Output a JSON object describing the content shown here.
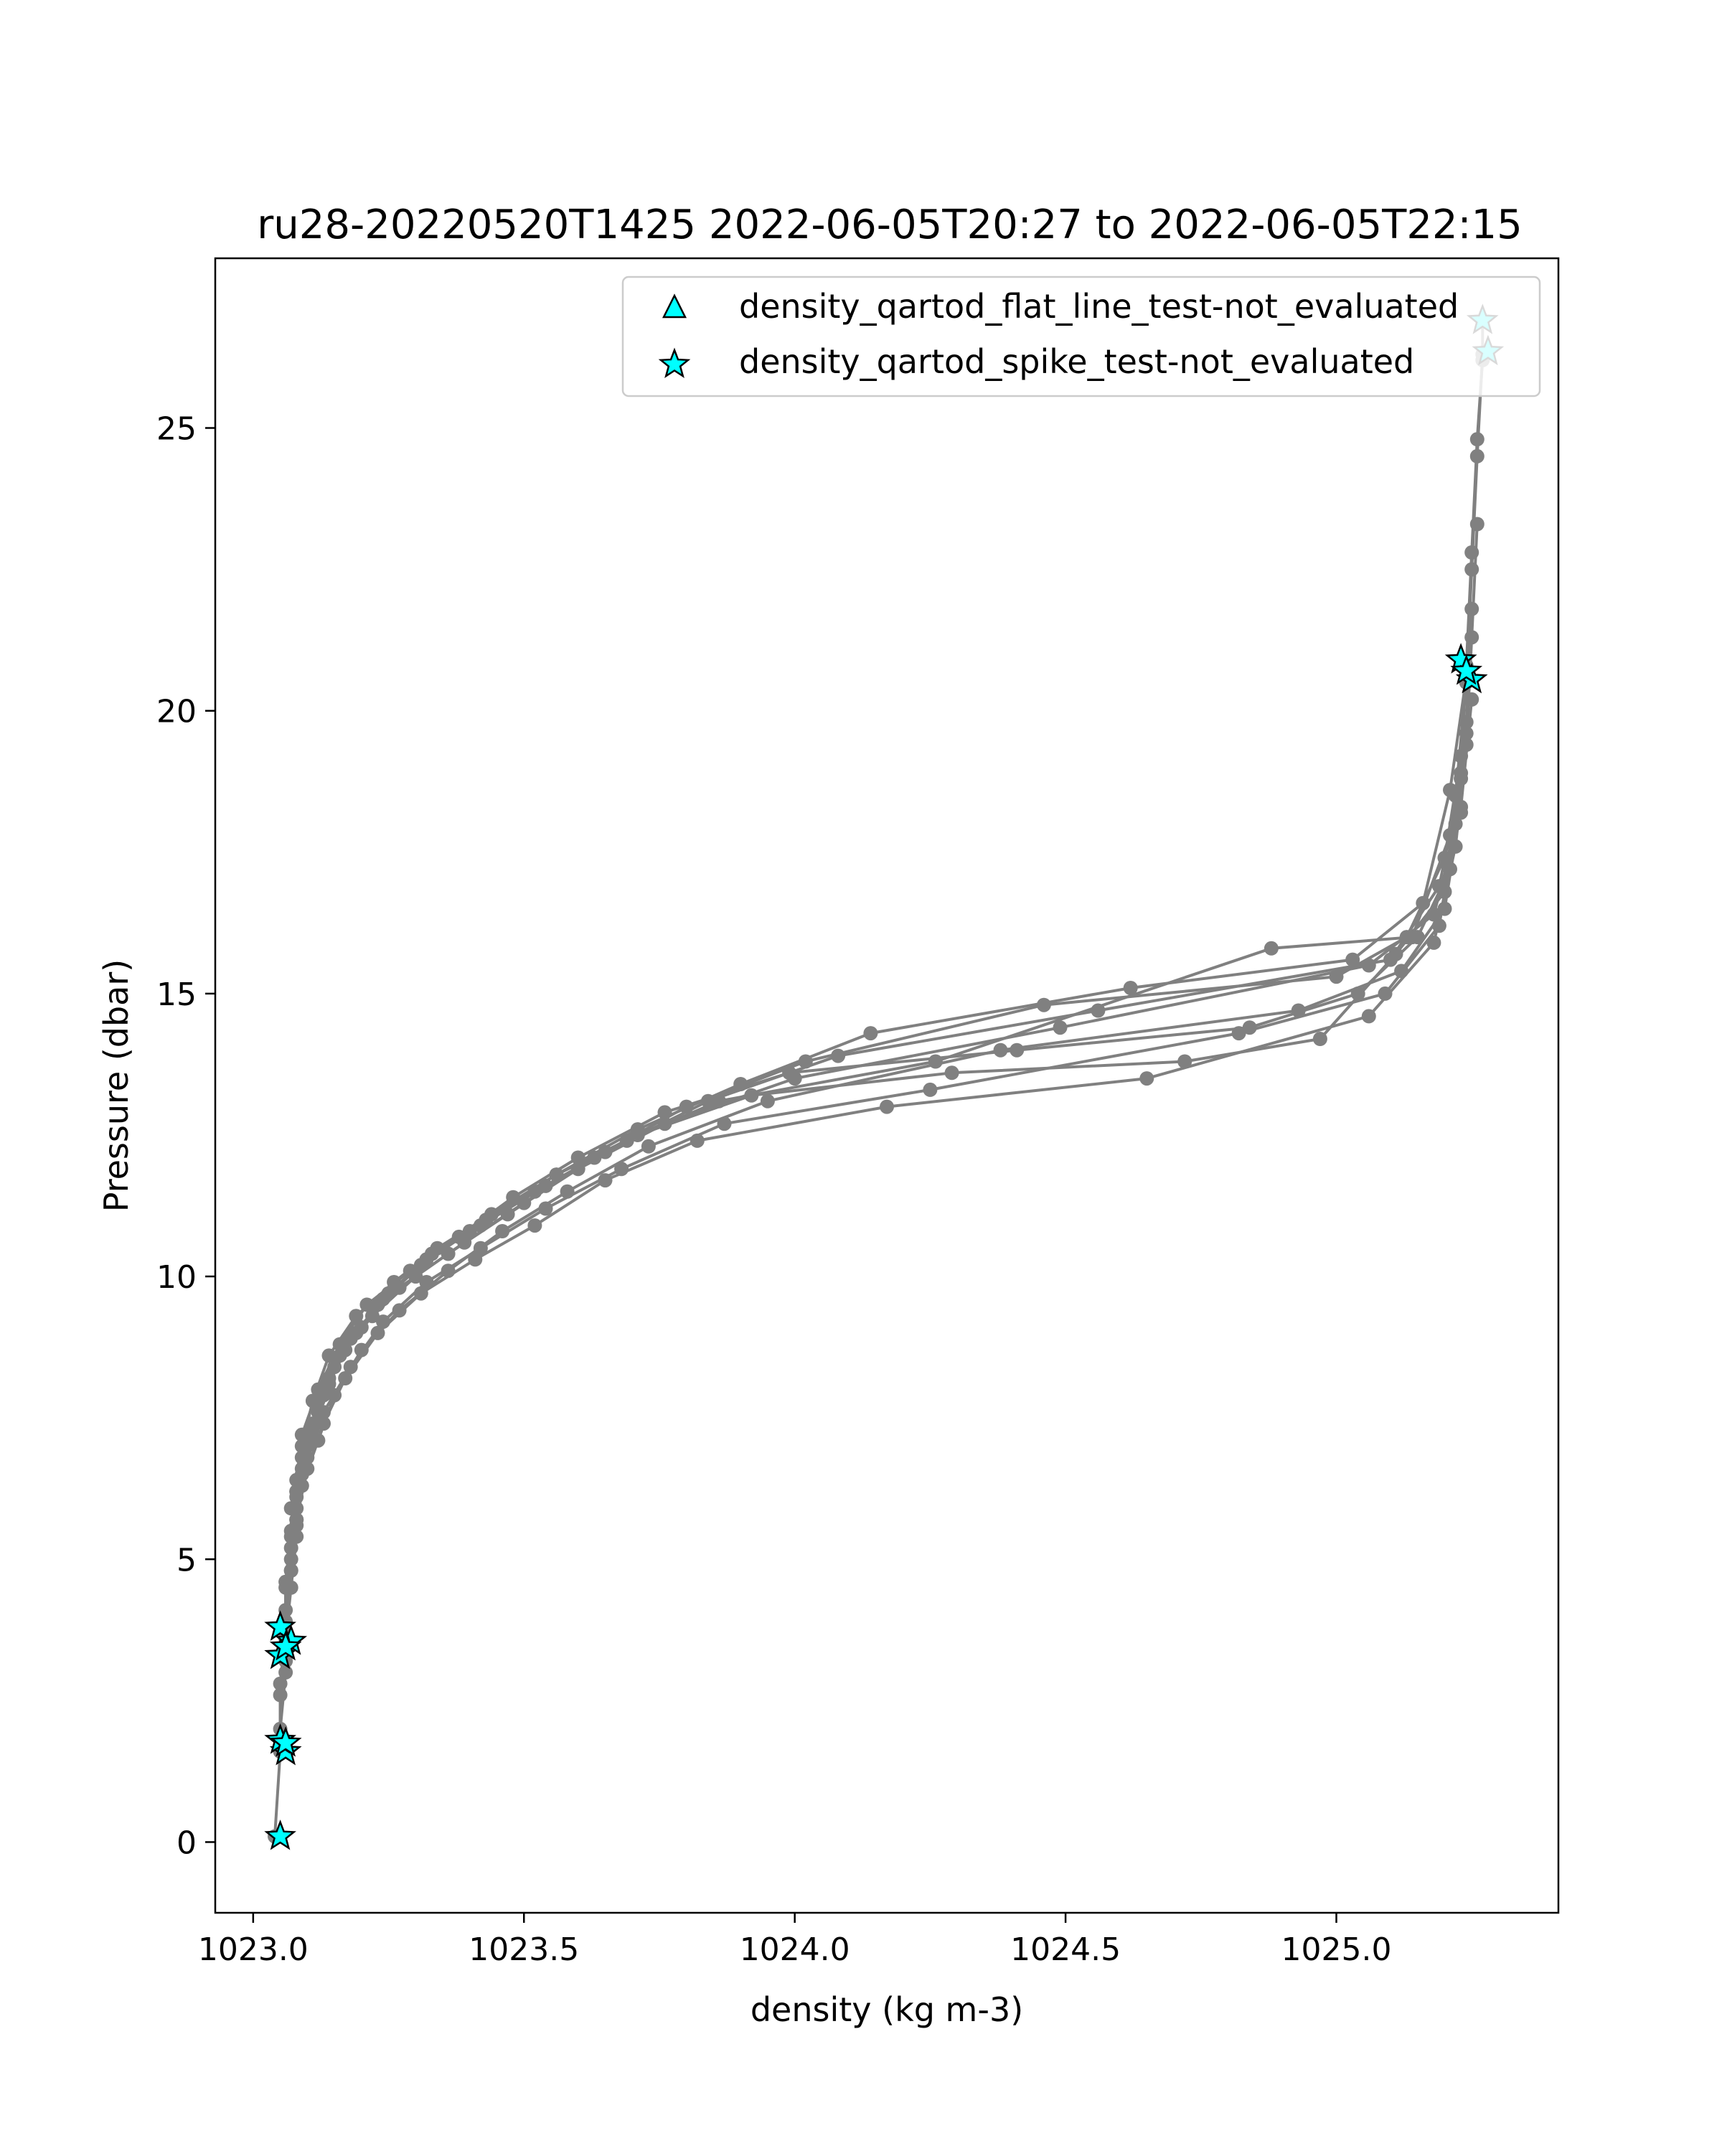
{
  "chart_data": {
    "type": "line",
    "title": "ru28-20220520T1425 2022-06-05T20:27 to 2022-06-05T22:15",
    "xlabel": "density (kg m-3)",
    "ylabel": "Pressure (dbar)",
    "xlim": [
      1022.93,
      1025.41
    ],
    "ylim": [
      28.0,
      -1.25
    ],
    "y_inverted": true,
    "grid": false,
    "xticks": [
      1023.0,
      1023.5,
      1024.0,
      1024.5,
      1025.0
    ],
    "xtick_labels": [
      "1023.0",
      "1023.5",
      "1024.0",
      "1024.5",
      "1025.0"
    ],
    "yticks": [
      0,
      5,
      10,
      15,
      20,
      25
    ],
    "ytick_labels": [
      "0",
      "5",
      "10",
      "15",
      "20",
      "25"
    ],
    "line_color": "#808080",
    "marker_color": "#808080",
    "flag_color": "#00ffff",
    "legend_position": "upper-right",
    "legend": [
      {
        "label": "density_qartod_flat_line_test-not_evaluated",
        "marker": "triangle",
        "color": "#00ffff"
      },
      {
        "label": "density_qartod_spike_test-not_evaluated",
        "marker": "star",
        "color": "#00ffff"
      }
    ],
    "series": [
      {
        "x": [
          1023.04,
          1023.05,
          1023.05,
          1023.06,
          1023.06,
          1023.07,
          1023.08,
          1023.09,
          1023.11,
          1023.14,
          1023.19,
          1023.26,
          1023.34,
          1023.44,
          1023.56,
          1023.71,
          1023.92,
          1024.29,
          1024.72,
          1024.97,
          1025.11,
          1025.2,
          1025.22,
          1025.24,
          1025.25,
          1025.26,
          1025.27,
          1025.27
        ],
        "y": [
          0.1,
          1.6,
          2.6,
          3.5,
          4.5,
          5.4,
          6.2,
          7.0,
          7.8,
          8.6,
          9.3,
          9.9,
          10.5,
          11.1,
          11.8,
          12.5,
          13.2,
          13.6,
          13.8,
          14.2,
          15.7,
          16.8,
          18.5,
          20.5,
          22.5,
          24.5,
          26.3,
          26.9
        ]
      },
      {
        "x": [
          1023.05,
          1023.05,
          1023.06,
          1023.06,
          1023.07,
          1023.08,
          1023.09,
          1023.12,
          1023.16,
          1023.21,
          1023.29,
          1023.38,
          1023.48,
          1023.6,
          1023.76,
          1023.99,
          1024.41,
          1024.84,
          1025.04,
          1025.15,
          1025.21,
          1025.23,
          1025.24,
          1025.25,
          1025.26,
          1025.27
        ],
        "y": [
          1.8,
          2.8,
          3.7,
          4.6,
          5.5,
          6.4,
          7.2,
          8.0,
          8.8,
          9.5,
          10.1,
          10.7,
          11.4,
          12.1,
          12.9,
          13.6,
          14.0,
          14.4,
          15.0,
          16.0,
          17.2,
          18.9,
          20.8,
          22.8,
          24.8,
          26.2
        ]
      },
      {
        "x": [
          1023.05,
          1023.06,
          1023.06,
          1023.07,
          1023.08,
          1023.1,
          1023.13,
          1023.17,
          1023.23,
          1023.31,
          1023.41,
          1023.52,
          1023.65,
          1023.82,
          1024.17,
          1024.65,
          1025.06,
          1025.18,
          1025.22,
          1025.24,
          1025.25,
          1025.26
        ],
        "y": [
          2.0,
          3.0,
          3.9,
          4.8,
          5.7,
          6.6,
          7.4,
          8.2,
          9.0,
          9.7,
          10.3,
          10.9,
          11.7,
          12.4,
          13.0,
          13.5,
          14.6,
          15.9,
          17.6,
          19.4,
          21.3,
          23.3
        ]
      },
      {
        "x": [
          1023.06,
          1023.06,
          1023.07,
          1023.08,
          1023.1,
          1023.13,
          1023.18,
          1023.24,
          1023.32,
          1023.42,
          1023.54,
          1023.68,
          1023.87,
          1024.25,
          1024.82,
          1025.09,
          1025.19,
          1025.22,
          1025.24,
          1025.25
        ],
        "y": [
          3.2,
          4.1,
          5.0,
          5.9,
          6.8,
          7.6,
          8.4,
          9.2,
          9.9,
          10.5,
          11.2,
          11.9,
          12.7,
          13.3,
          14.3,
          15.0,
          16.2,
          18.0,
          19.8,
          21.8
        ]
      },
      {
        "x": [
          1023.06,
          1023.07,
          1023.08,
          1023.09,
          1023.12,
          1023.15,
          1023.2,
          1023.27,
          1023.36,
          1023.46,
          1023.58,
          1023.73,
          1023.95,
          1024.38,
          1024.93,
          1025.12,
          1025.2,
          1025.23,
          1025.25
        ],
        "y": [
          3.6,
          4.5,
          5.4,
          6.3,
          7.1,
          7.9,
          8.7,
          9.4,
          10.1,
          10.8,
          11.5,
          12.3,
          13.1,
          14.0,
          14.7,
          15.4,
          16.5,
          18.3,
          20.2
        ]
      },
      {
        "x": [
          1023.07,
          1023.08,
          1023.09,
          1023.11,
          1023.14,
          1023.19,
          1023.25,
          1023.33,
          1023.43,
          1023.56,
          1023.71,
          1023.9,
          1024.14,
          1024.62,
          1025.03,
          1025.16,
          1025.21,
          1025.24
        ],
        "y": [
          4.8,
          5.7,
          6.6,
          7.4,
          8.2,
          9.0,
          9.7,
          10.4,
          11.0,
          11.8,
          12.6,
          13.4,
          14.3,
          15.1,
          15.6,
          16.6,
          18.6,
          20.6
        ]
      },
      {
        "x": [
          1023.07,
          1023.08,
          1023.1,
          1023.12,
          1023.16,
          1023.22,
          1023.3,
          1023.39,
          1023.5,
          1023.63,
          1023.8,
          1024.02,
          1024.46,
          1025.0,
          1025.13,
          1025.2,
          1025.23
        ],
        "y": [
          5.2,
          6.1,
          7.0,
          7.8,
          8.6,
          9.3,
          10.0,
          10.6,
          11.3,
          12.1,
          13.0,
          13.8,
          14.8,
          15.3,
          16.0,
          17.4,
          19.2
        ]
      },
      {
        "x": [
          1023.08,
          1023.09,
          1023.11,
          1023.14,
          1023.18,
          1023.24,
          1023.32,
          1023.42,
          1023.54,
          1023.69,
          1023.86,
          1024.26,
          1024.88,
          1025.14,
          1025.21,
          1025.24
        ],
        "y": [
          5.6,
          6.5,
          7.3,
          8.1,
          8.9,
          9.6,
          10.3,
          10.9,
          11.6,
          12.4,
          13.1,
          13.8,
          15.8,
          16.0,
          17.8,
          19.6
        ]
      },
      {
        "x": [
          1023.07,
          1023.09,
          1023.12,
          1023.15,
          1023.2,
          1023.27,
          1023.36,
          1023.47,
          1023.6,
          1023.76,
          1024.0,
          1024.49,
          1025.06,
          1025.18,
          1025.23
        ],
        "y": [
          5.9,
          6.8,
          7.6,
          8.4,
          9.1,
          9.8,
          10.4,
          11.1,
          11.9,
          12.7,
          13.5,
          14.4,
          15.5,
          16.4,
          18.2
        ]
      },
      {
        "x": [
          1023.08,
          1023.1,
          1023.13,
          1023.17,
          1023.23,
          1023.31,
          1023.4,
          1023.52,
          1023.65,
          1023.84,
          1024.08,
          1024.56,
          1025.1,
          1025.19,
          1025.23
        ],
        "y": [
          6.2,
          7.1,
          7.9,
          8.7,
          9.5,
          10.2,
          10.8,
          11.5,
          12.2,
          13.1,
          13.9,
          14.7,
          15.6,
          16.9,
          18.8
        ]
      }
    ],
    "flagged_points": {
      "marker": "star",
      "x": [
        1023.05,
        1023.06,
        1023.05,
        1023.06,
        1023.05,
        1023.07,
        1023.05,
        1023.06,
        1025.25,
        1025.23,
        1025.24,
        1025.28,
        1025.27
      ],
      "y": [
        0.1,
        1.6,
        1.8,
        1.75,
        3.3,
        3.55,
        3.8,
        3.45,
        20.55,
        20.9,
        20.7,
        26.35,
        26.9
      ]
    }
  }
}
